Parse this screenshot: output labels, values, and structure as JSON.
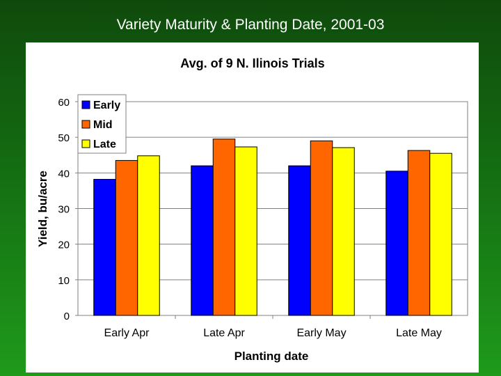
{
  "slide": {
    "title": "Variety Maturity & Planting Date, 2001-03"
  },
  "chart_data": {
    "type": "bar",
    "title": "Avg. of 9 N. Ilinois Trials",
    "xlabel": "Planting date",
    "ylabel": "Yield, bu/acre",
    "categories": [
      "Early Apr",
      "Late Apr",
      "Early May",
      "Late May"
    ],
    "series": [
      {
        "name": "Early",
        "color": "#0000ff",
        "values": [
          38.2,
          42.0,
          42.0,
          40.5
        ]
      },
      {
        "name": "Mid",
        "color": "#ff6600",
        "values": [
          43.5,
          49.5,
          49.0,
          46.3
        ]
      },
      {
        "name": "Late",
        "color": "#ffff00",
        "values": [
          44.8,
          47.3,
          47.1,
          45.5
        ]
      }
    ],
    "ylim": [
      0,
      60
    ],
    "yticks": [
      0,
      10,
      20,
      30,
      40,
      50,
      60
    ],
    "grid": true,
    "legend": "top-left"
  }
}
